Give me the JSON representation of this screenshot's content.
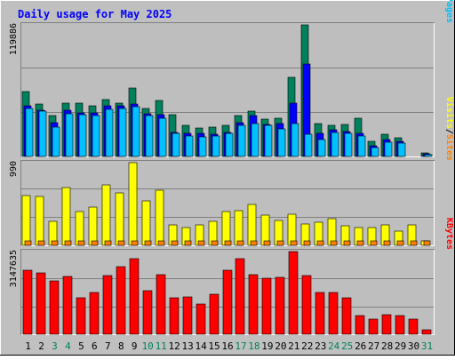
{
  "title": "Daily usage for May 2025",
  "colors": {
    "background": "#c0c0c0",
    "panel": "#bebebe",
    "title_text": "#0000ff",
    "hits": "#00805c",
    "files": "#0000ff",
    "pages": "#00c0ff",
    "visits": "#ffff00",
    "sites": "#ff8000",
    "kbytes": "#ff0000",
    "weekend_label": "#00805c"
  },
  "chart_data": [
    {
      "type": "bar",
      "ylabel_max": "119886",
      "legend": [
        {
          "text": "Pages",
          "color": "#00c0ff"
        },
        {
          "text": "/",
          "color": "#000000"
        },
        {
          "text": "Files",
          "color": "#0000ff"
        },
        {
          "text": "/",
          "color": "#000000"
        },
        {
          "text": "Hits",
          "color": "#00805c"
        }
      ],
      "ylim": [
        0,
        119886
      ],
      "grid": true,
      "categories": [
        "1",
        "2",
        "3",
        "4",
        "5",
        "6",
        "7",
        "8",
        "9",
        "10",
        "11",
        "12",
        "13",
        "14",
        "15",
        "16",
        "17",
        "18",
        "19",
        "20",
        "21",
        "22",
        "23",
        "24",
        "25",
        "26",
        "27",
        "28",
        "29",
        "30",
        "31"
      ],
      "series": [
        {
          "name": "Hits",
          "values": [
            59000,
            48000,
            37000,
            49000,
            49000,
            46000,
            52000,
            49000,
            62000,
            44000,
            51000,
            38000,
            28000,
            26000,
            27000,
            28000,
            37000,
            41000,
            34000,
            35000,
            72000,
            120000,
            30000,
            28000,
            29000,
            35000,
            14000,
            20000,
            17000,
            0,
            3000
          ]
        },
        {
          "name": "Files",
          "values": [
            46000,
            42000,
            31000,
            42000,
            40000,
            40000,
            46000,
            46000,
            48000,
            39000,
            38000,
            22000,
            21000,
            21000,
            20000,
            22000,
            31000,
            37000,
            29000,
            30000,
            49000,
            84000,
            21000,
            24000,
            23000,
            21000,
            10000,
            15000,
            14000,
            0,
            2500
          ]
        },
        {
          "name": "Pages",
          "values": [
            44000,
            41000,
            27000,
            39000,
            38000,
            37000,
            43000,
            44000,
            45000,
            37000,
            35000,
            21000,
            19000,
            18000,
            19000,
            21000,
            28000,
            30000,
            28000,
            25000,
            30000,
            20000,
            15000,
            22000,
            21000,
            19000,
            8000,
            13000,
            12000,
            0,
            2000
          ]
        }
      ]
    },
    {
      "type": "bar",
      "ylabel_max": "990",
      "legend": [
        {
          "text": "Sites",
          "color": "#ff8000"
        },
        {
          "text": "/",
          "color": "#000000"
        },
        {
          "text": "Visits",
          "color": "#ffff00"
        }
      ],
      "ylim": [
        0,
        990
      ],
      "grid": true,
      "categories": [
        "1",
        "2",
        "3",
        "4",
        "5",
        "6",
        "7",
        "8",
        "9",
        "10",
        "11",
        "12",
        "13",
        "14",
        "15",
        "16",
        "17",
        "18",
        "19",
        "20",
        "21",
        "22",
        "23",
        "24",
        "25",
        "26",
        "27",
        "28",
        "29",
        "30",
        "31"
      ],
      "series": [
        {
          "name": "Visits",
          "values": [
            600,
            590,
            290,
            690,
            400,
            460,
            720,
            630,
            990,
            530,
            660,
            240,
            210,
            240,
            290,
            400,
            410,
            490,
            360,
            300,
            370,
            260,
            280,
            320,
            230,
            210,
            210,
            240,
            170,
            250,
            50
          ]
        },
        {
          "name": "Sites",
          "values": [
            50,
            50,
            50,
            50,
            50,
            50,
            50,
            50,
            50,
            50,
            50,
            50,
            50,
            50,
            50,
            50,
            50,
            50,
            50,
            50,
            50,
            50,
            50,
            50,
            50,
            50,
            50,
            50,
            50,
            50,
            50
          ]
        }
      ]
    },
    {
      "type": "bar",
      "ylabel_max": "3147635",
      "legend": [
        {
          "text": "KBytes",
          "color": "#ff0000"
        }
      ],
      "ylim": [
        0,
        3147635
      ],
      "grid": true,
      "categories": [
        "1",
        "2",
        "3",
        "4",
        "5",
        "6",
        "7",
        "8",
        "9",
        "10",
        "11",
        "12",
        "13",
        "14",
        "15",
        "16",
        "17",
        "18",
        "19",
        "20",
        "21",
        "22",
        "23",
        "24",
        "25",
        "26",
        "27",
        "28",
        "29",
        "30",
        "31"
      ],
      "series": [
        {
          "name": "KBytes",
          "values": [
            2420000,
            2320000,
            2040000,
            2200000,
            1400000,
            1580000,
            2230000,
            2570000,
            2860000,
            1650000,
            2280000,
            1380000,
            1430000,
            1160000,
            1520000,
            2420000,
            2860000,
            2270000,
            2140000,
            2180000,
            3147635,
            2240000,
            1600000,
            1600000,
            1380000,
            700000,
            590000,
            730000,
            700000,
            590000,
            160000
          ]
        }
      ]
    }
  ],
  "x_labels": [
    {
      "text": "1",
      "weekend": false
    },
    {
      "text": "2",
      "weekend": false
    },
    {
      "text": "3",
      "weekend": true
    },
    {
      "text": "4",
      "weekend": true
    },
    {
      "text": "5",
      "weekend": false
    },
    {
      "text": "6",
      "weekend": false
    },
    {
      "text": "7",
      "weekend": false
    },
    {
      "text": "8",
      "weekend": false
    },
    {
      "text": "9",
      "weekend": false
    },
    {
      "text": "10",
      "weekend": true
    },
    {
      "text": "11",
      "weekend": true
    },
    {
      "text": "12",
      "weekend": false
    },
    {
      "text": "13",
      "weekend": false
    },
    {
      "text": "14",
      "weekend": false
    },
    {
      "text": "15",
      "weekend": false
    },
    {
      "text": "16",
      "weekend": false
    },
    {
      "text": "17",
      "weekend": true
    },
    {
      "text": "18",
      "weekend": true
    },
    {
      "text": "19",
      "weekend": false
    },
    {
      "text": "20",
      "weekend": false
    },
    {
      "text": "21",
      "weekend": false
    },
    {
      "text": "22",
      "weekend": false
    },
    {
      "text": "23",
      "weekend": false
    },
    {
      "text": "24",
      "weekend": true
    },
    {
      "text": "25",
      "weekend": true
    },
    {
      "text": "26",
      "weekend": false
    },
    {
      "text": "27",
      "weekend": false
    },
    {
      "text": "28",
      "weekend": false
    },
    {
      "text": "29",
      "weekend": false
    },
    {
      "text": "30",
      "weekend": false
    },
    {
      "text": "31",
      "weekend": true
    }
  ]
}
